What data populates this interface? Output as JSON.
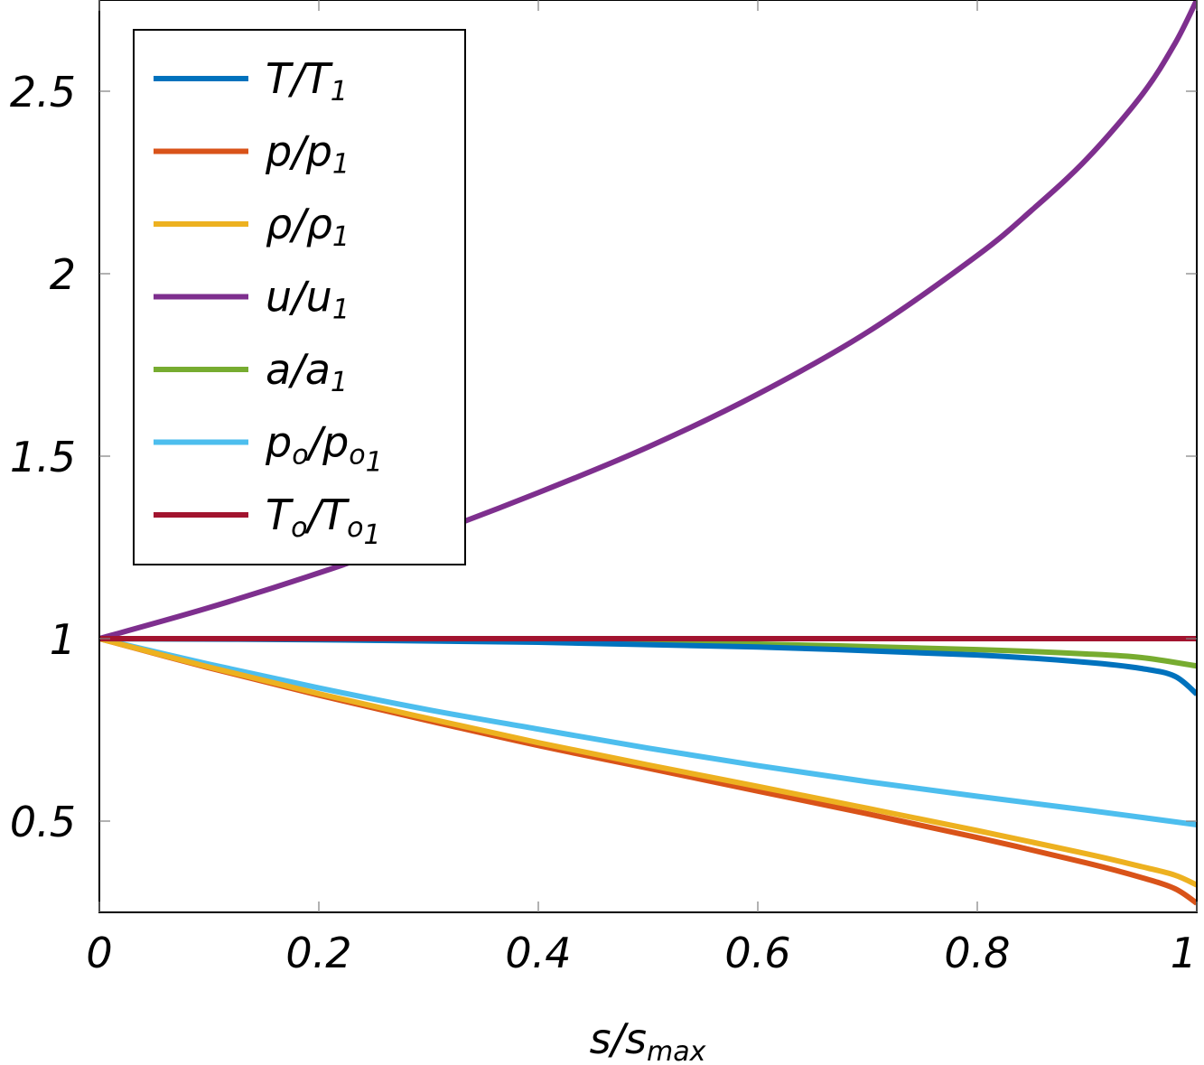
{
  "chart_data": {
    "type": "line",
    "xlabel": {
      "main": "s",
      "sep": "/",
      "base": "s",
      "sub": "max"
    },
    "xlim": [
      0,
      1
    ],
    "ylim": [
      0.25,
      2.75
    ],
    "xticks": [
      0,
      0.2,
      0.4,
      0.6,
      0.8,
      1
    ],
    "xtick_labels": [
      "0",
      "0.2",
      "0.4",
      "0.6",
      "0.8",
      "1"
    ],
    "yticks": [
      0.5,
      1,
      1.5,
      2,
      2.5
    ],
    "ytick_labels": [
      "0.5",
      "1",
      "1.5",
      "2",
      "2.5"
    ],
    "grid": false,
    "legend_position": "top-left",
    "series": [
      {
        "key": "T",
        "label": {
          "num": "T",
          "sep": "/",
          "den": "T",
          "sub": "1",
          "sub2": ""
        },
        "color": "#0072bd",
        "x": [
          0,
          0.2,
          0.4,
          0.6,
          0.8,
          0.9,
          0.95,
          0.98,
          1.0
        ],
        "y": [
          1.0,
          0.997,
          0.99,
          0.977,
          0.955,
          0.935,
          0.918,
          0.897,
          0.848
        ]
      },
      {
        "key": "p",
        "label": {
          "num": "p",
          "sep": "/",
          "den": "p",
          "sub": "1",
          "sub2": ""
        },
        "color": "#d95319",
        "x": [
          0,
          0.1,
          0.2,
          0.3,
          0.4,
          0.5,
          0.6,
          0.7,
          0.8,
          0.9,
          0.95,
          0.98,
          1.0
        ],
        "y": [
          1.0,
          0.92,
          0.845,
          0.775,
          0.707,
          0.645,
          0.582,
          0.52,
          0.455,
          0.385,
          0.345,
          0.315,
          0.275
        ]
      },
      {
        "key": "rho",
        "label": {
          "num": "ρ",
          "sep": "/",
          "den": "ρ",
          "sub": "1",
          "sub2": ""
        },
        "color": "#edb120",
        "x": [
          0,
          0.1,
          0.2,
          0.3,
          0.4,
          0.5,
          0.6,
          0.7,
          0.8,
          0.9,
          0.95,
          0.98,
          1.0
        ],
        "y": [
          1.0,
          0.922,
          0.849,
          0.781,
          0.715,
          0.654,
          0.595,
          0.535,
          0.474,
          0.41,
          0.375,
          0.352,
          0.325
        ]
      },
      {
        "key": "u",
        "label": {
          "num": "u",
          "sep": "/",
          "den": "u",
          "sub": "1",
          "sub2": ""
        },
        "color": "#7e2f8e",
        "x": [
          0,
          0.1,
          0.2,
          0.3,
          0.4,
          0.5,
          0.6,
          0.7,
          0.8,
          0.85,
          0.9,
          0.95,
          0.98,
          1.0
        ],
        "y": [
          1.0,
          1.085,
          1.18,
          1.285,
          1.4,
          1.525,
          1.67,
          1.84,
          2.05,
          2.175,
          2.315,
          2.49,
          2.63,
          2.75
        ]
      },
      {
        "key": "a",
        "label": {
          "num": "a",
          "sep": "/",
          "den": "a",
          "sub": "1",
          "sub2": ""
        },
        "color": "#77ac30",
        "x": [
          0,
          0.2,
          0.4,
          0.6,
          0.8,
          0.9,
          0.95,
          1.0
        ],
        "y": [
          1.0,
          0.998,
          0.993,
          0.985,
          0.97,
          0.958,
          0.948,
          0.925
        ]
      },
      {
        "key": "po",
        "label": {
          "num": "p",
          "numsub": "o",
          "sep": "/",
          "den": "p",
          "sub": "o",
          "sub2": "1"
        },
        "color": "#4dbeee",
        "x": [
          0,
          0.1,
          0.2,
          0.3,
          0.4,
          0.5,
          0.6,
          0.7,
          0.8,
          0.9,
          1.0
        ],
        "y": [
          1.0,
          0.93,
          0.865,
          0.805,
          0.752,
          0.7,
          0.652,
          0.608,
          0.568,
          0.53,
          0.49
        ]
      },
      {
        "key": "To",
        "label": {
          "num": "T",
          "numsub": "o",
          "sep": "/",
          "den": "T",
          "sub": "o",
          "sub2": "1"
        },
        "color": "#a2142f",
        "x": [
          0,
          1.0
        ],
        "y": [
          1.0,
          1.0
        ]
      }
    ]
  }
}
